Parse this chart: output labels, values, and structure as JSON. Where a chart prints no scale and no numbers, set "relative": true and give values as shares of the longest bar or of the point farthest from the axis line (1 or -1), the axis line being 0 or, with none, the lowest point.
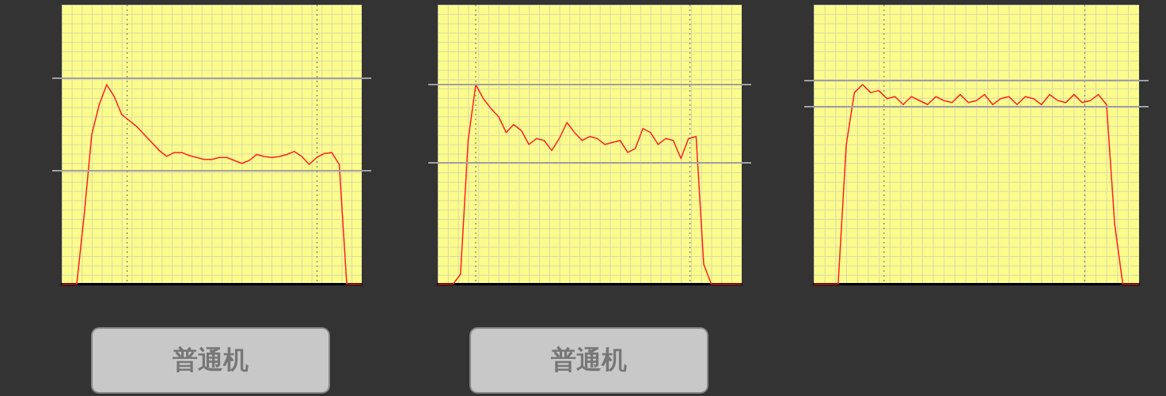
{
  "chart_data": [
    {
      "type": "line",
      "xlabel": "普通机",
      "relative": true,
      "categories": [
        null,
        null,
        null,
        null,
        null,
        null,
        null,
        null,
        null,
        null,
        null,
        null,
        null,
        null,
        null,
        null,
        null,
        null,
        null,
        null,
        null,
        null,
        null,
        null,
        null,
        null,
        null,
        null,
        null,
        null,
        null,
        null,
        null,
        null,
        null,
        null,
        null,
        null,
        null,
        null,
        null
      ],
      "series": [
        {
          "color": "#ff2020",
          "values": [
            0,
            0,
            0,
            0.35,
            0.75,
            0.9,
            1,
            0.94,
            0.85,
            0.82,
            0.79,
            0.75,
            0.71,
            0.67,
            0.64,
            0.66,
            0.66,
            0.645,
            0.635,
            0.625,
            0.625,
            0.635,
            0.635,
            0.62,
            0.605,
            0.62,
            0.65,
            0.64,
            0.635,
            0.64,
            0.65,
            0.665,
            0.64,
            0.6,
            0.635,
            0.655,
            0.66,
            0.6,
            0,
            0,
            0
          ]
        }
      ],
      "ref_lines": [
        {
          "axis": "y",
          "value": 1.03,
          "color": "#a0a0a0",
          "line_style": "solid"
        },
        {
          "axis": "y",
          "value": 0.57,
          "color": "#a0a0a0",
          "line_style": "solid"
        }
      ]
    },
    {
      "type": "line",
      "xlabel": "普通机",
      "relative": true,
      "categories": [
        null,
        null,
        null,
        null,
        null,
        null,
        null,
        null,
        null,
        null,
        null,
        null,
        null,
        null,
        null,
        null,
        null,
        null,
        null,
        null,
        null,
        null,
        null,
        null,
        null,
        null,
        null,
        null,
        null,
        null,
        null,
        null,
        null,
        null,
        null,
        null,
        null,
        null,
        null,
        null,
        null
      ],
      "series": [
        {
          "color": "#ff2020",
          "values": [
            0,
            0,
            0,
            0.05,
            0.72,
            1,
            0.93,
            0.88,
            0.84,
            0.76,
            0.8,
            0.77,
            0.7,
            0.73,
            0.72,
            0.67,
            0.73,
            0.81,
            0.76,
            0.72,
            0.74,
            0.73,
            0.7,
            0.71,
            0.72,
            0.66,
            0.68,
            0.78,
            0.76,
            0.7,
            0.73,
            0.72,
            0.63,
            0.73,
            0.74,
            0.1,
            0,
            0,
            0,
            0,
            0
          ]
        }
      ],
      "ref_lines": [
        {
          "axis": "y",
          "value": 1.0,
          "color": "#a0a0a0",
          "line_style": "solid"
        },
        {
          "axis": "y",
          "value": 0.61,
          "color": "#a0a0a0",
          "line_style": "solid"
        }
      ]
    },
    {
      "type": "line",
      "relative": true,
      "categories": [
        null,
        null,
        null,
        null,
        null,
        null,
        null,
        null,
        null,
        null,
        null,
        null,
        null,
        null,
        null,
        null,
        null,
        null,
        null,
        null,
        null,
        null,
        null,
        null,
        null,
        null,
        null,
        null,
        null,
        null,
        null,
        null,
        null,
        null,
        null,
        null,
        null,
        null,
        null,
        null,
        null
      ],
      "series": [
        {
          "color": "#ff2020",
          "values": [
            0,
            0,
            0,
            0,
            0.7,
            0.96,
            1,
            0.96,
            0.97,
            0.93,
            0.94,
            0.9,
            0.94,
            0.92,
            0.9,
            0.94,
            0.92,
            0.91,
            0.95,
            0.91,
            0.92,
            0.95,
            0.9,
            0.93,
            0.94,
            0.9,
            0.94,
            0.93,
            0.9,
            0.95,
            0.92,
            0.91,
            0.95,
            0.91,
            0.92,
            0.95,
            0.9,
            0.3,
            0,
            0,
            0
          ]
        }
      ],
      "ref_lines": [
        {
          "axis": "y",
          "value": 1.02,
          "color": "#a0a0a0",
          "line_style": "solid"
        },
        {
          "axis": "y",
          "value": 0.89,
          "color": "#a0a0a0",
          "line_style": "solid"
        }
      ]
    }
  ]
}
